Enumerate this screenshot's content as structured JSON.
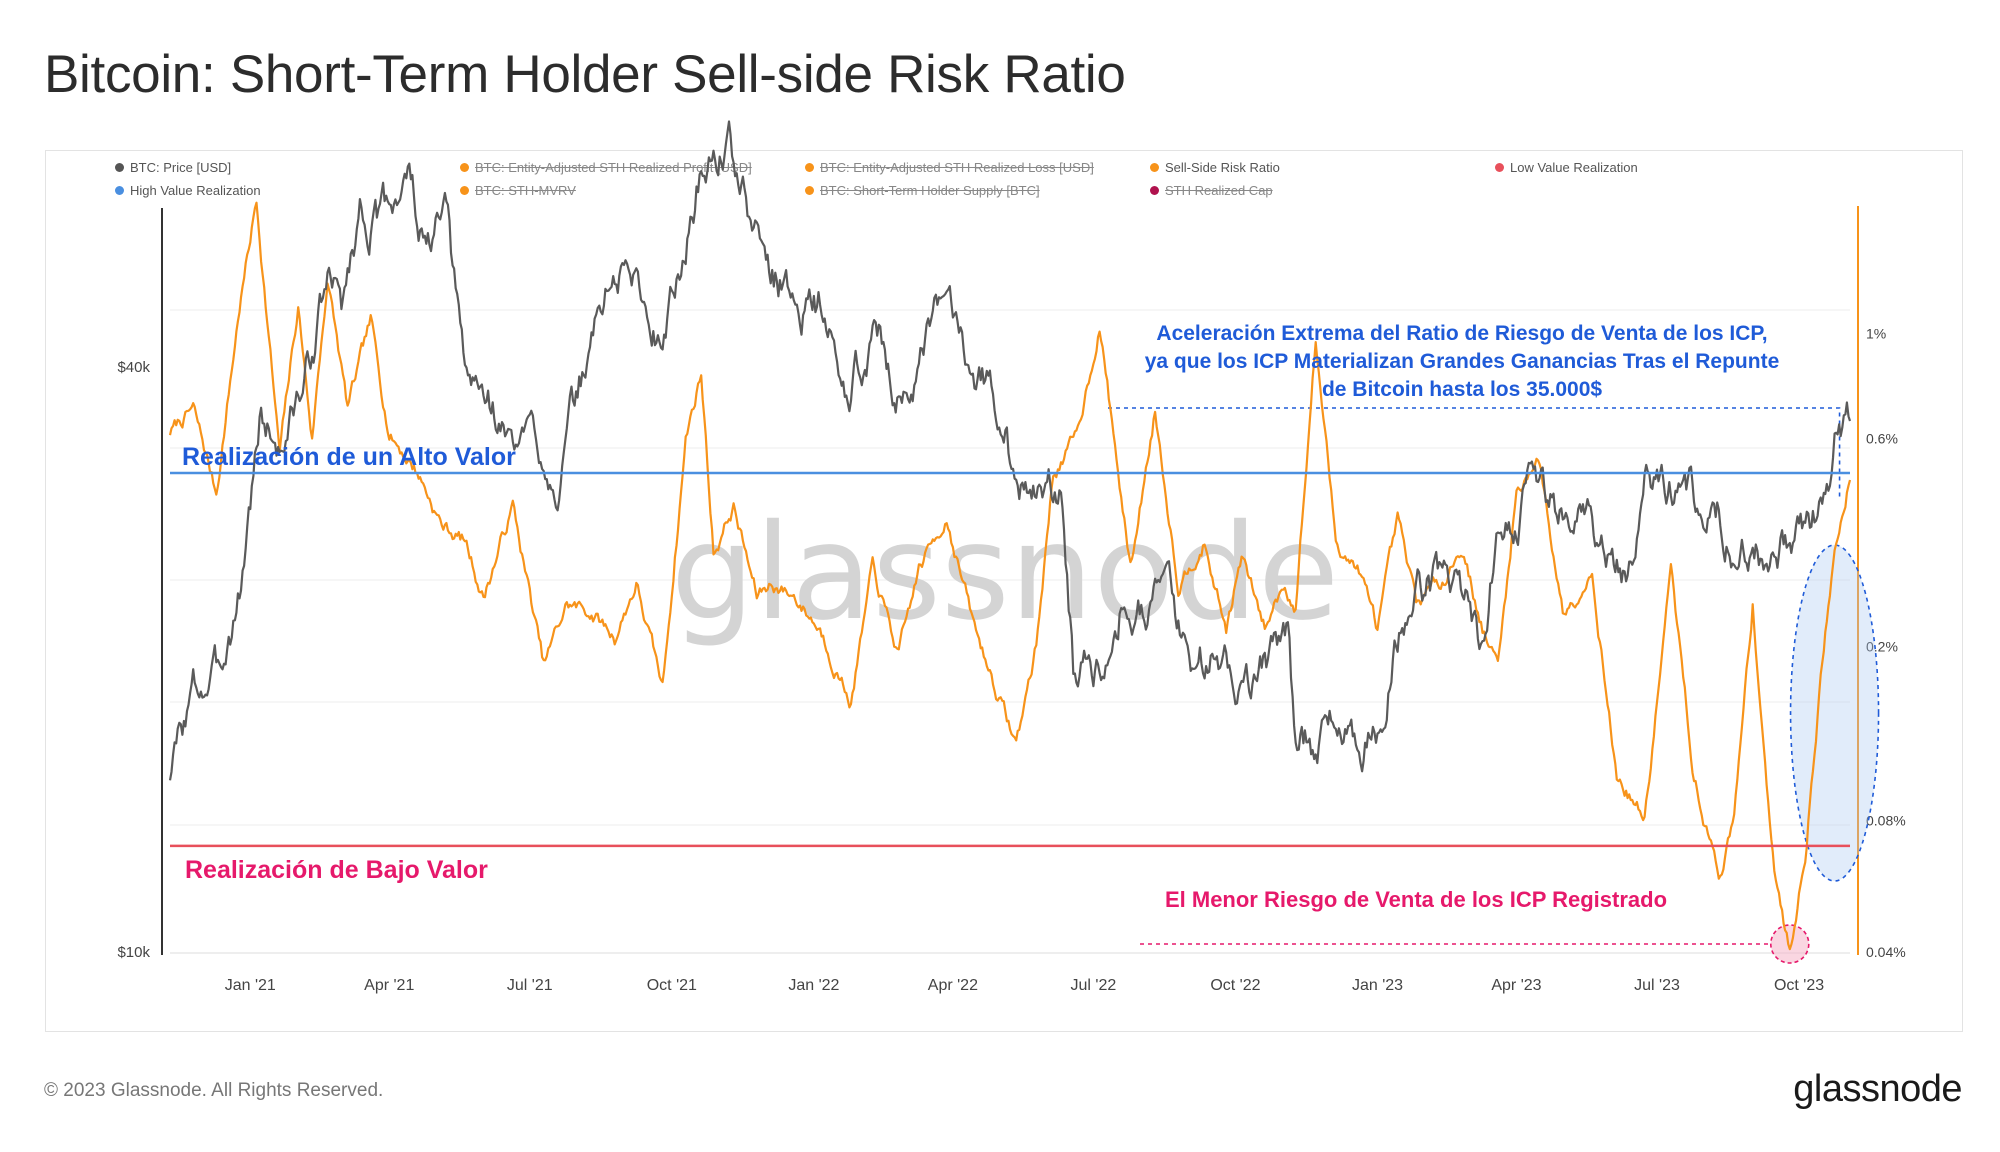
{
  "title": "Bitcoin: Short-Term Holder Sell-side Risk Ratio",
  "footer": {
    "copyright": "© 2023 Glassnode. All Rights Reserved.",
    "logo": "glassnode"
  },
  "watermark": "glassnode",
  "legend": [
    {
      "label": "BTC: Price [USD]",
      "color": "#555555",
      "disabled": false
    },
    {
      "label": "BTC: Entity-Adjusted STH Realized Profit [USD]",
      "color": "#f7931a",
      "disabled": true
    },
    {
      "label": "BTC: Entity-Adjusted STH Realized Loss [USD]",
      "color": "#f7931a",
      "disabled": true
    },
    {
      "label": "Sell-Side Risk Ratio",
      "color": "#f7931a",
      "disabled": false
    },
    {
      "label": "Low Value Realization",
      "color": "#e8505b",
      "disabled": false
    },
    {
      "label": "High Value Realization",
      "color": "#4a8fe0",
      "disabled": false
    },
    {
      "label": "BTC: STH-MVRV",
      "color": "#f7931a",
      "disabled": true
    },
    {
      "label": "BTC: Short-Term Holder Supply [BTC]",
      "color": "#f7931a",
      "disabled": true
    },
    {
      "label": "STH Realized Cap",
      "color": "#b0124e",
      "disabled": true
    }
  ],
  "annotations": {
    "high_label": "Realización de un Alto Valor",
    "low_label": "Realización de Bajo Valor",
    "acceleration": [
      "Aceleración Extrema del Ratio de Riesgo de Venta de los ICP,",
      "ya que los ICP Materializan Grandes Ganancias Tras el Repunte",
      "de Bitcoin hasta los 35.000$"
    ],
    "lowest": "El Menor Riesgo de Venta de los ICP Registrado"
  },
  "colors": {
    "price": "#5a5a5a",
    "ratio": "#f7931a",
    "high": "#4a8fe0",
    "low": "#e8505b",
    "annotation_blue": "#1f5bd8",
    "annotation_pink": "#e6196b"
  },
  "chart_data": {
    "type": "line",
    "title": "Bitcoin: Short-Term Holder Sell-side Risk Ratio",
    "x_ticks": [
      "Jan '21",
      "Apr '21",
      "Jul '21",
      "Oct '21",
      "Jan '22",
      "Apr '22",
      "Jul '22",
      "Oct '22",
      "Jan '23",
      "Apr '23",
      "Jul '23",
      "Oct '23"
    ],
    "x_range": [
      "2020-11-10",
      "2023-11-03"
    ],
    "y_left": {
      "scale": "log",
      "range": [
        10000,
        58000
      ],
      "ticks": [
        "$10k",
        "$40k"
      ]
    },
    "y_right": {
      "scale": "log",
      "range": [
        0.04,
        2.0
      ],
      "ticks": [
        "1%",
        "0.6%",
        "0.2%",
        "0.08%",
        "0.04%"
      ]
    },
    "thresholds": {
      "high_value_realization": 0.5,
      "low_value_realization": 0.07
    },
    "series": [
      {
        "name": "BTC: Price [USD]",
        "axis": "left",
        "x": [
          "2020-11-10",
          "2020-11-25",
          "2020-12-10",
          "2020-12-25",
          "2021-01-08",
          "2021-01-20",
          "2021-02-05",
          "2021-02-20",
          "2021-03-01",
          "2021-03-13",
          "2021-03-25",
          "2021-04-13",
          "2021-04-25",
          "2021-05-07",
          "2021-05-20",
          "2021-06-05",
          "2021-06-20",
          "2021-07-05",
          "2021-07-20",
          "2021-08-05",
          "2021-08-20",
          "2021-09-05",
          "2021-09-20",
          "2021-10-05",
          "2021-10-20",
          "2021-11-08",
          "2021-11-20",
          "2021-12-05",
          "2021-12-20",
          "2022-01-05",
          "2022-01-22",
          "2022-02-10",
          "2022-02-24",
          "2022-03-10",
          "2022-03-28",
          "2022-04-15",
          "2022-05-05",
          "2022-05-12",
          "2022-05-25",
          "2022-06-10",
          "2022-06-18",
          "2022-07-05",
          "2022-07-20",
          "2022-08-05",
          "2022-08-15",
          "2022-09-01",
          "2022-09-15",
          "2022-10-01",
          "2022-10-20",
          "2022-11-05",
          "2022-11-09",
          "2022-11-21",
          "2022-12-05",
          "2022-12-20",
          "2023-01-01",
          "2023-01-14",
          "2023-01-28",
          "2023-02-15",
          "2023-03-01",
          "2023-03-10",
          "2023-03-20",
          "2023-04-01",
          "2023-04-14",
          "2023-05-01",
          "2023-05-20",
          "2023-06-10",
          "2023-06-15",
          "2023-06-23",
          "2023-07-10",
          "2023-07-25",
          "2023-08-10",
          "2023-08-17",
          "2023-09-01",
          "2023-09-11",
          "2023-09-25",
          "2023-10-10",
          "2023-10-20",
          "2023-10-24",
          "2023-11-03"
        ],
        "values": [
          15300,
          18500,
          19200,
          23500,
          36000,
          33000,
          38500,
          49000,
          46000,
          58000,
          56000,
          63500,
          52000,
          57000,
          39000,
          37000,
          33000,
          34000,
          30500,
          39500,
          48500,
          50500,
          43500,
          49000,
          64000,
          68000,
          57000,
          50000,
          47000,
          46500,
          36500,
          44500,
          38000,
          39000,
          47100,
          40500,
          36000,
          29500,
          29500,
          30000,
          19500,
          20100,
          23400,
          23200,
          24300,
          20000,
          20100,
          19400,
          19500,
          21100,
          16500,
          16300,
          17100,
          16800,
          16600,
          20800,
          23600,
          24700,
          23500,
          20100,
          28000,
          28400,
          30300,
          28000,
          27000,
          25200,
          25500,
          30500,
          30300,
          29200,
          29400,
          26300,
          25900,
          25100,
          26300,
          27600,
          29700,
          33900,
          34700
        ]
      },
      {
        "name": "Sell-Side Risk Ratio",
        "axis": "right",
        "x": [
          "2020-11-10",
          "2020-11-25",
          "2020-12-10",
          "2020-12-25",
          "2021-01-05",
          "2021-01-20",
          "2021-02-01",
          "2021-02-10",
          "2021-02-20",
          "2021-03-05",
          "2021-03-20",
          "2021-04-01",
          "2021-04-20",
          "2021-05-05",
          "2021-05-20",
          "2021-06-01",
          "2021-06-20",
          "2021-07-10",
          "2021-07-25",
          "2021-08-10",
          "2021-08-25",
          "2021-09-08",
          "2021-09-25",
          "2021-10-10",
          "2021-10-20",
          "2021-10-28",
          "2021-11-10",
          "2021-11-25",
          "2021-12-05",
          "2021-12-20",
          "2022-01-05",
          "2022-01-25",
          "2022-02-08",
          "2022-02-25",
          "2022-03-10",
          "2022-03-28",
          "2022-04-15",
          "2022-05-05",
          "2022-05-12",
          "2022-05-25",
          "2022-06-05",
          "2022-06-20",
          "2022-07-05",
          "2022-07-25",
          "2022-08-10",
          "2022-08-25",
          "2022-09-10",
          "2022-09-25",
          "2022-10-05",
          "2022-10-20",
          "2022-11-01",
          "2022-11-09",
          "2022-11-22",
          "2022-12-05",
          "2022-12-20",
          "2023-01-01",
          "2023-01-14",
          "2023-01-26",
          "2023-02-10",
          "2023-02-25",
          "2023-03-10",
          "2023-03-20",
          "2023-04-01",
          "2023-04-15",
          "2023-05-01",
          "2023-05-20",
          "2023-06-05",
          "2023-06-15",
          "2023-06-23",
          "2023-07-10",
          "2023-07-25",
          "2023-08-10",
          "2023-08-20",
          "2023-09-01",
          "2023-09-15",
          "2023-09-25",
          "2023-10-05",
          "2023-10-15",
          "2023-10-24",
          "2023-11-03"
        ],
        "values": [
          0.62,
          0.7,
          0.45,
          1.2,
          2.1,
          0.55,
          1.2,
          0.6,
          1.4,
          0.7,
          1.1,
          0.62,
          0.5,
          0.38,
          0.35,
          0.26,
          0.42,
          0.18,
          0.25,
          0.24,
          0.21,
          0.28,
          0.16,
          0.6,
          0.85,
          0.33,
          0.42,
          0.26,
          0.28,
          0.26,
          0.22,
          0.15,
          0.3,
          0.19,
          0.3,
          0.4,
          0.22,
          0.14,
          0.12,
          0.2,
          0.5,
          0.6,
          1.1,
          0.3,
          0.7,
          0.28,
          0.35,
          0.22,
          0.32,
          0.22,
          0.28,
          0.25,
          1.0,
          0.35,
          0.3,
          0.22,
          0.38,
          0.25,
          0.28,
          0.34,
          0.22,
          0.18,
          0.45,
          0.55,
          0.24,
          0.3,
          0.1,
          0.09,
          0.08,
          0.3,
          0.1,
          0.06,
          0.08,
          0.25,
          0.06,
          0.04,
          0.068,
          0.17,
          0.33,
          0.5
        ]
      }
    ]
  }
}
